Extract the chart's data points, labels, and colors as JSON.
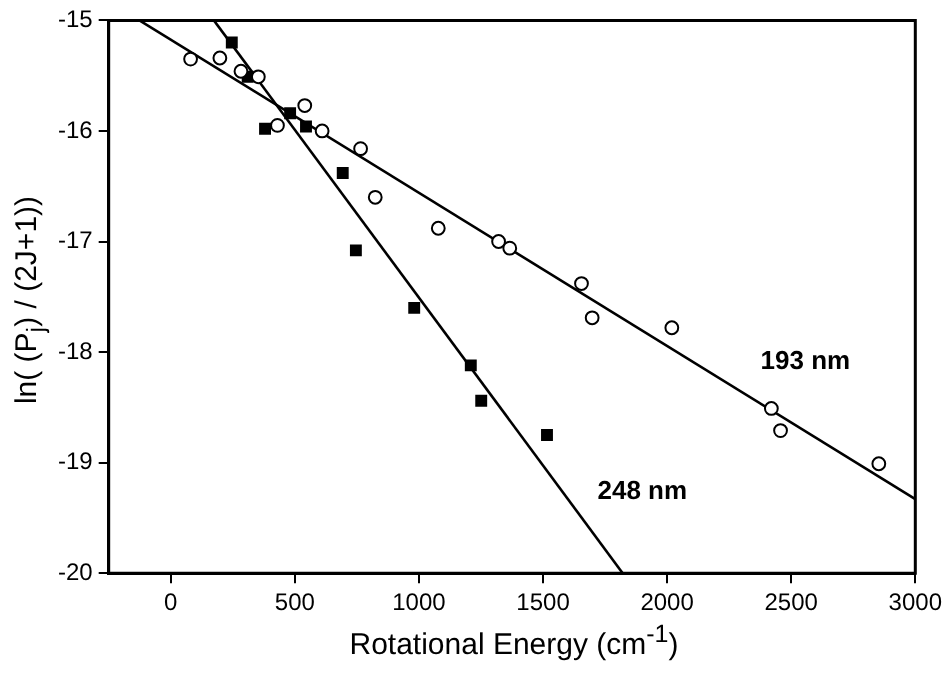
{
  "chart_data": {
    "type": "scatter",
    "xlabel": "Rotational Energy (cm$^{-1}$)",
    "ylabel": "ln( (P$_{j}$) / (2J+1))",
    "xlim": [
      -250,
      3000
    ],
    "ylim": [
      -20,
      -15
    ],
    "xticks": [
      0,
      500,
      1000,
      1500,
      2000,
      2500,
      3000
    ],
    "yticks": [
      -20,
      -19,
      -18,
      -17,
      -16,
      -15
    ],
    "grid": false,
    "legend": false,
    "series": [
      {
        "type": "scatter",
        "marker": "circle",
        "color": "#000000",
        "x": [
          80,
          198,
          283,
          353,
          430,
          540,
          610,
          765,
          824,
          1078,
          1321,
          1366,
          1655,
          1698,
          2019,
          2420,
          2457,
          2853
        ],
        "values": [
          -15.35,
          -15.34,
          -15.46,
          -15.51,
          -15.95,
          -15.77,
          -16.0,
          -16.16,
          -16.6,
          -16.88,
          -17.0,
          -17.06,
          -17.38,
          -17.69,
          -17.78,
          -18.51,
          -18.71,
          -19.01
        ]
      },
      {
        "type": "scatter",
        "marker": "square",
        "color": "#000000",
        "x": [
          246,
          310,
          380,
          481,
          545,
          693,
          746,
          981,
          1209,
          1251,
          1516
        ],
        "values": [
          -15.2,
          -15.51,
          -15.98,
          -15.84,
          -15.96,
          -16.38,
          -17.08,
          -17.6,
          -18.12,
          -18.44,
          -18.75
        ]
      },
      {
        "type": "line",
        "name": "193 nm",
        "marker": "none",
        "color": "#000000",
        "x": [
          -126,
          3000
        ],
        "values": [
          -15,
          -19.33
        ]
      },
      {
        "type": "line",
        "name": "248 nm",
        "marker": "none",
        "color": "#000000",
        "x": [
          174,
          1821
        ],
        "values": [
          -15,
          -20
        ]
      }
    ]
  }
}
